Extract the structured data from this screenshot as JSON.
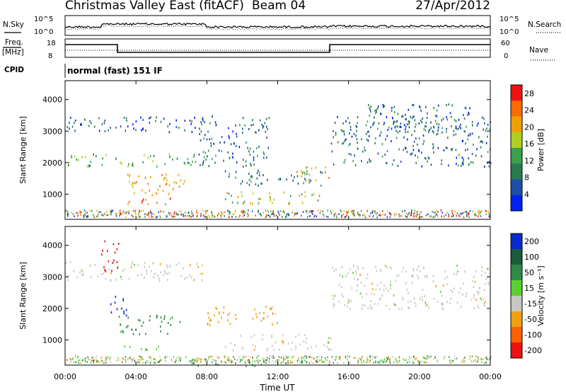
{
  "header": {
    "title": "Christmas Valley East (fitACF)",
    "beam": "Beam 04",
    "date": "27/Apr/2012"
  },
  "params_panel": {
    "nsky_label": "N.Sky",
    "nsearch_label": "N.Search",
    "noise_ticks": [
      "10^5",
      "10^0"
    ],
    "freq_label_1": "Freq.",
    "freq_label_2": "[MHz]",
    "freq_ticks": [
      "18",
      "8"
    ],
    "nave_label": "Nave",
    "nave_ticks": [
      "60",
      "0"
    ],
    "cpid_label": "CPID",
    "cpid_text": "normal (fast) 151 IF"
  },
  "time_axis": {
    "label": "Time UT",
    "ticks": [
      "00:00",
      "04:00",
      "08:00",
      "12:00",
      "16:00",
      "20:00",
      "00:00"
    ]
  },
  "colors": {
    "power": [
      "#0022ee",
      "#1c4fa8",
      "#2a7a50",
      "#3aa04a",
      "#b0d020",
      "#f0a000",
      "#ff6a00",
      "#ee1111"
    ],
    "velocity": [
      "#0a2ad0",
      "#1c5a3c",
      "#2e8a46",
      "#5ad030",
      "#c8c8c0",
      "#f0a010",
      "#ff6000",
      "#ee1111"
    ]
  },
  "chart_data": [
    {
      "type": "heatmap",
      "name": "power",
      "ylabel": "Slant Range [km]",
      "xlabel": "",
      "x_range_hours": [
        0,
        24
      ],
      "ylim": [
        200,
        4600
      ],
      "yticks": [
        1000,
        2000,
        3000,
        4000
      ],
      "colorbar": {
        "label": "Power [dB]",
        "ticks": [
          4,
          8,
          12,
          16,
          20,
          24,
          28
        ],
        "range": [
          0,
          30
        ]
      },
      "features": [
        {
          "t0": 0.0,
          "t1": 8.0,
          "r0": 3000,
          "r1": 3500,
          "level": 0.2
        },
        {
          "t0": 0.0,
          "t1": 7.5,
          "r0": 1900,
          "r1": 2300,
          "level": 0.45
        },
        {
          "t0": 3.5,
          "t1": 7.0,
          "r0": 1000,
          "r1": 1700,
          "level": 0.7
        },
        {
          "t0": 3.0,
          "t1": 6.0,
          "r0": 700,
          "r1": 900,
          "level": 0.75
        },
        {
          "t0": 7.5,
          "t1": 11.5,
          "r0": 1900,
          "r1": 3500,
          "level": 0.25
        },
        {
          "t0": 9.0,
          "t1": 14.5,
          "r0": 1300,
          "r1": 1800,
          "level": 0.3
        },
        {
          "t0": 9.0,
          "t1": 14.5,
          "r0": 700,
          "r1": 1100,
          "level": 0.55
        },
        {
          "t0": 13.0,
          "t1": 15.0,
          "r0": 1400,
          "r1": 1900,
          "level": 0.65
        },
        {
          "t0": 15.0,
          "t1": 24.0,
          "r0": 1900,
          "r1": 3500,
          "level": 0.25
        },
        {
          "t0": 17.0,
          "t1": 23.0,
          "r0": 2900,
          "r1": 3900,
          "level": 0.22
        }
      ]
    },
    {
      "type": "heatmap",
      "name": "velocity",
      "ylabel": "Slant Range [km]",
      "xlabel": "Time UT",
      "x_range_hours": [
        0,
        24
      ],
      "ylim": [
        200,
        4600
      ],
      "yticks": [
        1000,
        2000,
        3000,
        4000
      ],
      "colorbar": {
        "label": "Velocity [m s⁻¹]",
        "ticks": [
          200,
          100,
          50,
          15,
          -15,
          -50,
          -100,
          -200
        ]
      },
      "features": [
        {
          "t0": 0.0,
          "t1": 8.0,
          "r0": 2900,
          "r1": 3500,
          "v": -15
        },
        {
          "t0": 2.0,
          "t1": 3.0,
          "r0": 3200,
          "r1": 4200,
          "v": -200
        },
        {
          "t0": 2.5,
          "t1": 3.5,
          "r0": 1800,
          "r1": 2500,
          "v": 200
        },
        {
          "t0": 3.0,
          "t1": 6.5,
          "r0": 1200,
          "r1": 1800,
          "v": 50
        },
        {
          "t0": 3.0,
          "t1": 5.5,
          "r0": 700,
          "r1": 900,
          "v": 15
        },
        {
          "t0": 8.0,
          "t1": 12.0,
          "r0": 1500,
          "r1": 2100,
          "v": -50
        },
        {
          "t0": 9.0,
          "t1": 15.0,
          "r0": 700,
          "r1": 1200,
          "v": -15
        },
        {
          "t0": 15.0,
          "t1": 24.0,
          "r0": 2000,
          "r1": 3400,
          "v": -15
        },
        {
          "t0": 6.0,
          "t1": 15.0,
          "r0": 200,
          "r1": 400,
          "v": 50
        }
      ]
    }
  ]
}
